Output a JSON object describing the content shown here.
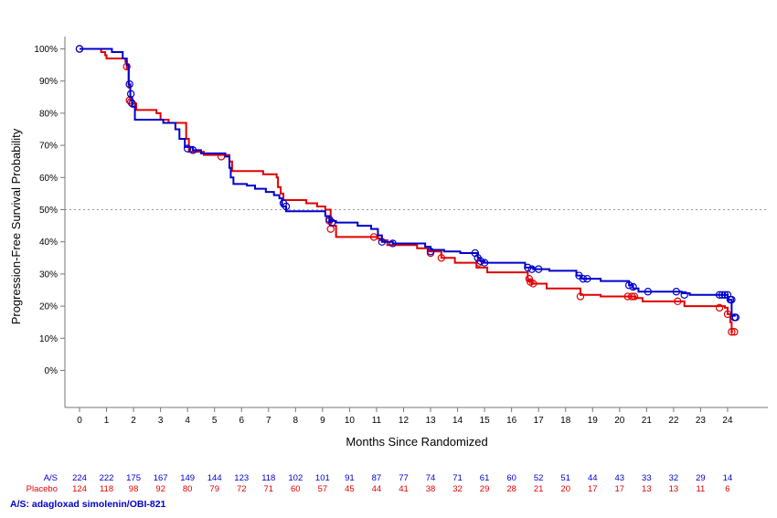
{
  "chart_data": {
    "type": "line",
    "subtype": "kaplan-meier",
    "ylabel": "Progression-Free Survival Probability",
    "xlabel": "Months Since Randomized",
    "xlim": [
      -0.5,
      24.8
    ],
    "ylim": [
      -12,
      102
    ],
    "x_ticks": [
      0,
      1,
      2,
      3,
      4,
      5,
      6,
      7,
      8,
      9,
      10,
      11,
      12,
      13,
      14,
      15,
      16,
      17,
      18,
      19,
      20,
      21,
      22,
      23,
      24
    ],
    "y_ticks": [
      0,
      10,
      20,
      30,
      40,
      50,
      60,
      70,
      80,
      90,
      100
    ],
    "y_tick_labels": [
      "0%",
      "10%",
      "20%",
      "30%",
      "40%",
      "50%",
      "60%",
      "70%",
      "80%",
      "90%",
      "100%"
    ],
    "reference_line": {
      "y": 50,
      "style": "dotted"
    },
    "grid": false,
    "series": [
      {
        "name": "A/S",
        "color": "#0000CC",
        "steps": [
          [
            0,
            100
          ],
          [
            1.2,
            99
          ],
          [
            1.6,
            97
          ],
          [
            1.75,
            95
          ],
          [
            1.82,
            89
          ],
          [
            1.88,
            85
          ],
          [
            1.95,
            82
          ],
          [
            2.05,
            78
          ],
          [
            3.1,
            77
          ],
          [
            3.55,
            75
          ],
          [
            3.7,
            72
          ],
          [
            3.9,
            69.5
          ],
          [
            4.2,
            68.5
          ],
          [
            4.5,
            67.5
          ],
          [
            5.4,
            66.5
          ],
          [
            5.55,
            63
          ],
          [
            5.6,
            60
          ],
          [
            5.7,
            58
          ],
          [
            6.2,
            57.5
          ],
          [
            6.5,
            56.5
          ],
          [
            6.9,
            55.5
          ],
          [
            7.2,
            54.5
          ],
          [
            7.4,
            53.5
          ],
          [
            7.5,
            51
          ],
          [
            7.65,
            49.5
          ],
          [
            9.1,
            48
          ],
          [
            9.25,
            46.5
          ],
          [
            9.5,
            46
          ],
          [
            10.3,
            45
          ],
          [
            10.8,
            44
          ],
          [
            11.05,
            42
          ],
          [
            11.2,
            40
          ],
          [
            11.6,
            39.5
          ],
          [
            12.8,
            38.5
          ],
          [
            13.0,
            37.5
          ],
          [
            13.5,
            37
          ],
          [
            14.1,
            36.5
          ],
          [
            14.75,
            35
          ],
          [
            14.85,
            34
          ],
          [
            15.0,
            33.5
          ],
          [
            16.5,
            32
          ],
          [
            16.8,
            31.5
          ],
          [
            17.4,
            31
          ],
          [
            18.4,
            29.5
          ],
          [
            18.6,
            28.5
          ],
          [
            19.3,
            27.8
          ],
          [
            20.35,
            26.5
          ],
          [
            20.5,
            25.5
          ],
          [
            20.7,
            24.5
          ],
          [
            22.3,
            24
          ],
          [
            22.6,
            23.5
          ],
          [
            23.8,
            23.5
          ],
          [
            24.0,
            22
          ],
          [
            24.15,
            17
          ],
          [
            24.3,
            17
          ]
        ],
        "censored": [
          [
            0,
            100
          ],
          [
            1.85,
            89
          ],
          [
            1.9,
            86
          ],
          [
            1.95,
            83
          ],
          [
            4.0,
            69
          ],
          [
            4.2,
            68.5
          ],
          [
            7.55,
            52
          ],
          [
            7.65,
            51
          ],
          [
            9.25,
            47
          ],
          [
            9.35,
            46
          ],
          [
            11.2,
            40
          ],
          [
            11.6,
            39.5
          ],
          [
            13.0,
            37
          ],
          [
            14.65,
            36.5
          ],
          [
            14.75,
            35
          ],
          [
            14.85,
            34
          ],
          [
            15.0,
            33.5
          ],
          [
            16.6,
            32
          ],
          [
            16.75,
            31.5
          ],
          [
            17.0,
            31.5
          ],
          [
            18.5,
            29.5
          ],
          [
            18.65,
            28.5
          ],
          [
            18.8,
            28.5
          ],
          [
            20.35,
            26.5
          ],
          [
            20.5,
            26
          ],
          [
            21.05,
            24.5
          ],
          [
            22.1,
            24.5
          ],
          [
            22.4,
            23.5
          ],
          [
            23.7,
            23.5
          ],
          [
            23.8,
            23.5
          ],
          [
            23.9,
            23.5
          ],
          [
            24.0,
            23.5
          ],
          [
            24.1,
            22
          ],
          [
            24.15,
            22
          ],
          [
            24.25,
            16.5
          ],
          [
            24.3,
            16.5
          ]
        ]
      },
      {
        "name": "Placebo",
        "color": "#E00000",
        "steps": [
          [
            0,
            100
          ],
          [
            0.8,
            99
          ],
          [
            0.95,
            98
          ],
          [
            1.0,
            97
          ],
          [
            1.7,
            96
          ],
          [
            1.75,
            94
          ],
          [
            1.82,
            88
          ],
          [
            1.88,
            84
          ],
          [
            1.95,
            83
          ],
          [
            2.1,
            81
          ],
          [
            2.85,
            80
          ],
          [
            3.0,
            78
          ],
          [
            3.3,
            77
          ],
          [
            3.95,
            72
          ],
          [
            4.05,
            68
          ],
          [
            4.6,
            67
          ],
          [
            5.55,
            65
          ],
          [
            5.65,
            62
          ],
          [
            6.8,
            61
          ],
          [
            7.3,
            60
          ],
          [
            7.35,
            57
          ],
          [
            7.45,
            55
          ],
          [
            7.55,
            53
          ],
          [
            8.4,
            52
          ],
          [
            8.8,
            51
          ],
          [
            9.1,
            50
          ],
          [
            9.3,
            45
          ],
          [
            9.5,
            41.5
          ],
          [
            11.05,
            41
          ],
          [
            11.15,
            40.5
          ],
          [
            11.4,
            39
          ],
          [
            12.5,
            38
          ],
          [
            12.9,
            37
          ],
          [
            13.4,
            35
          ],
          [
            13.9,
            33.5
          ],
          [
            14.7,
            32
          ],
          [
            15.1,
            30.5
          ],
          [
            16.6,
            28
          ],
          [
            16.75,
            27
          ],
          [
            17.3,
            25.5
          ],
          [
            18.55,
            23.5
          ],
          [
            19.3,
            23
          ],
          [
            20.6,
            22.5
          ],
          [
            20.85,
            21.5
          ],
          [
            22.4,
            20
          ],
          [
            23.9,
            19.5
          ],
          [
            24.0,
            17.5
          ],
          [
            24.1,
            15
          ],
          [
            24.15,
            12
          ],
          [
            24.2,
            12
          ]
        ],
        "censored": [
          [
            0,
            100
          ],
          [
            1.75,
            94.5
          ],
          [
            1.85,
            84
          ],
          [
            1.9,
            83.5
          ],
          [
            5.25,
            66.5
          ],
          [
            9.25,
            46.5
          ],
          [
            9.3,
            44
          ],
          [
            10.9,
            41.5
          ],
          [
            13.0,
            36.5
          ],
          [
            13.4,
            35
          ],
          [
            14.8,
            33.5
          ],
          [
            16.65,
            28.5
          ],
          [
            16.7,
            27.5
          ],
          [
            16.8,
            27
          ],
          [
            18.55,
            23
          ],
          [
            20.3,
            23
          ],
          [
            20.45,
            23
          ],
          [
            20.55,
            23
          ],
          [
            22.15,
            21.5
          ],
          [
            23.7,
            19.5
          ],
          [
            24.0,
            17.5
          ],
          [
            24.15,
            12
          ],
          [
            24.25,
            12
          ]
        ]
      }
    ],
    "risk_table": {
      "times": [
        0,
        1,
        2,
        3,
        4,
        5,
        6,
        7,
        8,
        9,
        10,
        11,
        12,
        13,
        14,
        15,
        16,
        17,
        18,
        19,
        20,
        21,
        22,
        23,
        24
      ],
      "rows": [
        {
          "label": "A/S",
          "color": "#0000CC",
          "values": [
            224,
            222,
            175,
            167,
            149,
            144,
            123,
            118,
            102,
            101,
            91,
            87,
            77,
            74,
            71,
            61,
            60,
            52,
            51,
            44,
            43,
            33,
            32,
            29,
            14
          ]
        },
        {
          "label": "Placebo",
          "color": "#E00000",
          "values": [
            124,
            118,
            98,
            92,
            80,
            79,
            72,
            71,
            60,
            57,
            45,
            44,
            41,
            38,
            32,
            29,
            28,
            21,
            20,
            17,
            17,
            13,
            13,
            11,
            6
          ]
        }
      ]
    },
    "footnote": "A/S: adagloxad simolenin/OBI-821"
  }
}
